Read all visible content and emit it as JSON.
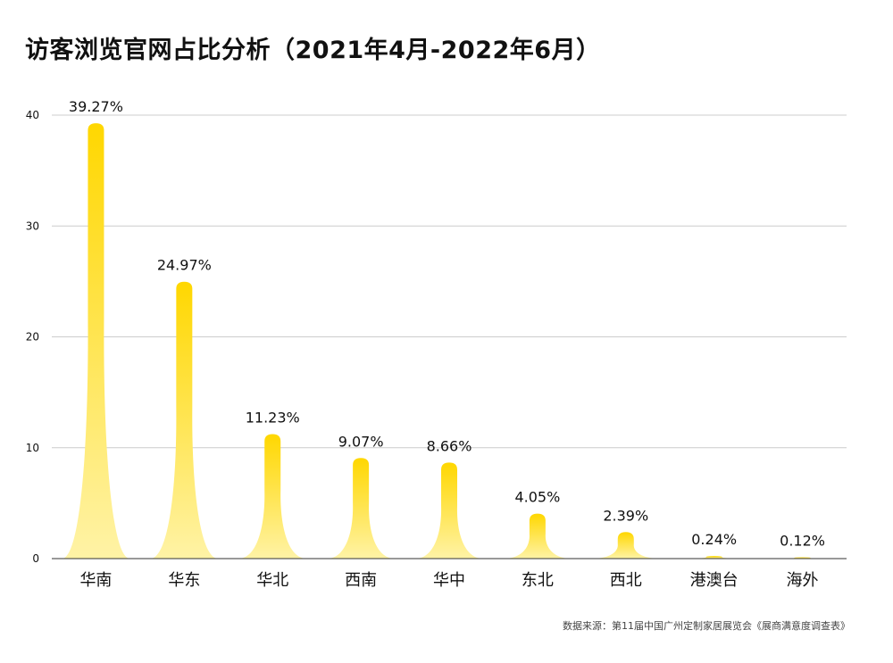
{
  "title": "访客浏览官网占比分析（2021年4月-2022年6月）",
  "source": "数据来源：第11届中国广州定制家居展览会《展商满意度调查表》",
  "colors": {
    "peak": "#ffd700",
    "base": "#fff3a6",
    "grid": "#cccccc",
    "axis": "#333333"
  },
  "chart_data": {
    "type": "bar",
    "shape": "peak",
    "categories": [
      "华南",
      "华东",
      "华北",
      "西南",
      "华中",
      "东北",
      "西北",
      "港澳台",
      "海外"
    ],
    "values": [
      39.27,
      24.97,
      11.23,
      9.07,
      8.66,
      4.05,
      2.39,
      0.24,
      0.12
    ],
    "data_labels": [
      "39.27%",
      "24.97%",
      "11.23%",
      "9.07%",
      "8.66%",
      "4.05%",
      "2.39%",
      "0.24%",
      "0.12%"
    ],
    "yticks": [
      "0",
      "10",
      "20",
      "30",
      "40"
    ],
    "ylim": [
      0,
      40
    ],
    "grid": true,
    "legend": "none"
  }
}
